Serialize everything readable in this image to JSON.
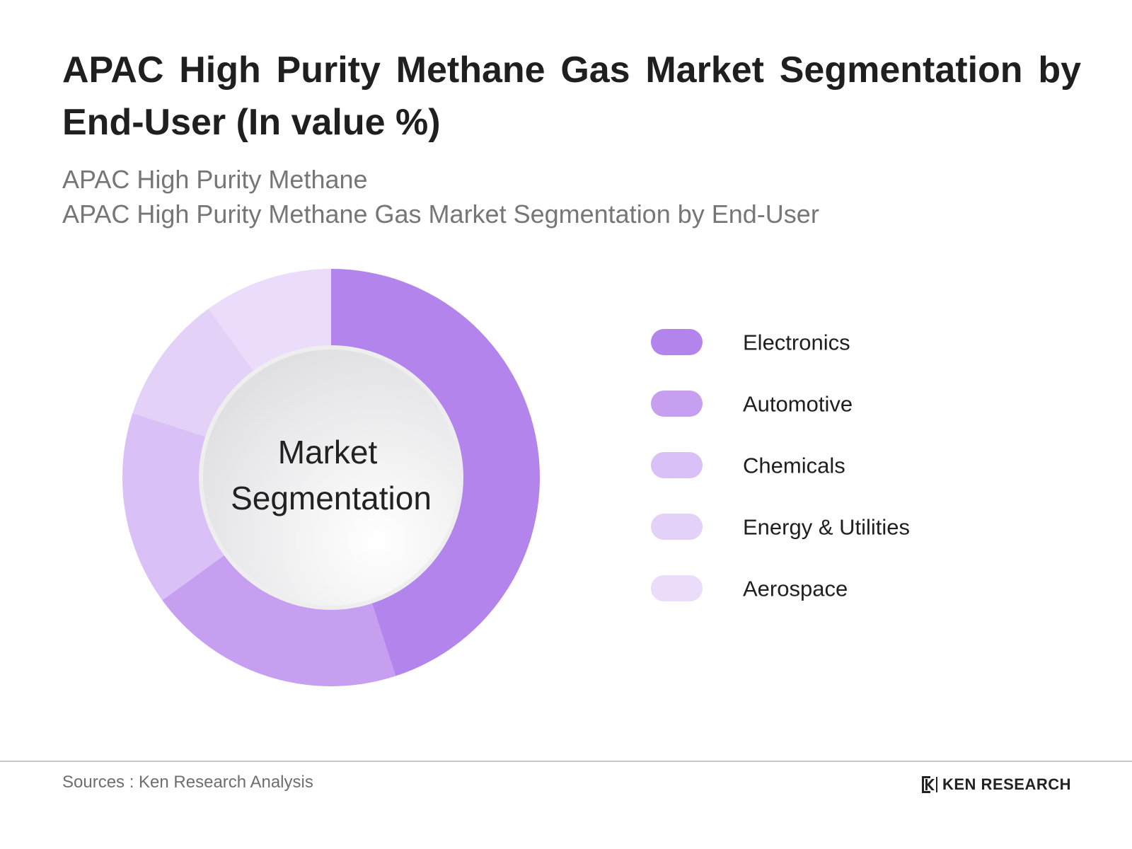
{
  "title": "APAC High Purity Methane Gas Market Segmentation by End-User (In value %)",
  "subtitle_line1": "APAC High Purity Methane",
  "subtitle_line2": "APAC High Purity Methane Gas Market Segmentation by End-User",
  "center_label_line1": "Market",
  "center_label_line2": "Segmentation",
  "source": "Sources : Ken Research Analysis",
  "brand": {
    "name": "KEN RESEARCH",
    "logo_icon": "ken-research-k-logo-icon"
  },
  "chart_data": {
    "type": "pie",
    "donut": true,
    "categories": [
      "Electronics",
      "Automotive",
      "Chemicals",
      "Energy & Utilities",
      "Aerospace"
    ],
    "values": [
      45,
      20,
      15,
      10,
      10
    ],
    "colors": [
      "#b385ec",
      "#c69ff0",
      "#d9c0f6",
      "#e3d1f8",
      "#eadcfa"
    ],
    "legend_position": "right",
    "title": "APAC High Purity Methane Gas Market Segmentation by End-User (In value %)"
  }
}
